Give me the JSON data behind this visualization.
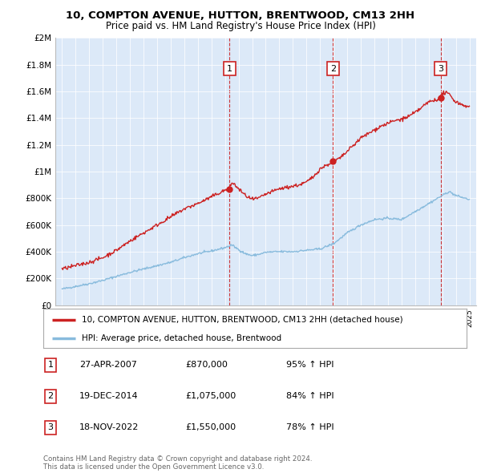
{
  "title": "10, COMPTON AVENUE, HUTTON, BRENTWOOD, CM13 2HH",
  "subtitle": "Price paid vs. HM Land Registry's House Price Index (HPI)",
  "ylim": [
    0,
    2000000
  ],
  "yticks": [
    0,
    200000,
    400000,
    600000,
    800000,
    1000000,
    1200000,
    1400000,
    1600000,
    1800000,
    2000000
  ],
  "ytick_labels": [
    "£0",
    "£200K",
    "£400K",
    "£600K",
    "£800K",
    "£1M",
    "£1.2M",
    "£1.4M",
    "£1.6M",
    "£1.8M",
    "£2M"
  ],
  "plot_bg_color": "#dce9f8",
  "red_color": "#cc2222",
  "blue_color": "#88bbdd",
  "sale_dates": [
    2007.32,
    2014.96,
    2022.88
  ],
  "sale_prices": [
    870000,
    1075000,
    1550000
  ],
  "sale_labels": [
    "1",
    "2",
    "3"
  ],
  "vline_color": "#cc2222",
  "legend_house": "10, COMPTON AVENUE, HUTTON, BRENTWOOD, CM13 2HH (detached house)",
  "legend_hpi": "HPI: Average price, detached house, Brentwood",
  "table_data": [
    [
      "1",
      "27-APR-2007",
      "£870,000",
      "95% ↑ HPI"
    ],
    [
      "2",
      "19-DEC-2014",
      "£1,075,000",
      "84% ↑ HPI"
    ],
    [
      "3",
      "18-NOV-2022",
      "£1,550,000",
      "78% ↑ HPI"
    ]
  ],
  "footnote": "Contains HM Land Registry data © Crown copyright and database right 2024.\nThis data is licensed under the Open Government Licence v3.0.",
  "xmin": 1994.5,
  "xmax": 2025.5,
  "hpi_x": [
    1995,
    1996,
    1997,
    1998,
    1999,
    2000,
    2001,
    2002,
    2003,
    2004,
    2005,
    2006,
    2007,
    2007.5,
    2008,
    2008.5,
    2009,
    2009.5,
    2010,
    2011,
    2012,
    2013,
    2014,
    2015,
    2016,
    2017,
    2018,
    2019,
    2020,
    2021,
    2022,
    2023,
    2023.5,
    2024,
    2025
  ],
  "hpi_y": [
    120000,
    140000,
    160000,
    185000,
    215000,
    245000,
    270000,
    295000,
    320000,
    355000,
    385000,
    405000,
    430000,
    450000,
    415000,
    385000,
    370000,
    380000,
    395000,
    400000,
    400000,
    410000,
    420000,
    460000,
    540000,
    600000,
    640000,
    650000,
    640000,
    700000,
    760000,
    820000,
    850000,
    820000,
    790000
  ],
  "red_x": [
    1995,
    1996,
    1997,
    1998,
    1999,
    2000,
    2001,
    2002,
    2003,
    2004,
    2005,
    2006,
    2007,
    2007.32,
    2007.5,
    2008,
    2008.5,
    2009,
    2009.5,
    2010,
    2010.5,
    2011,
    2011.5,
    2012,
    2012.5,
    2013,
    2013.5,
    2014,
    2014.96,
    2015,
    2015.5,
    2016,
    2016.5,
    2017,
    2017.5,
    2018,
    2018.5,
    2019,
    2019.5,
    2020,
    2020.5,
    2021,
    2021.5,
    2022,
    2022.88,
    2023,
    2023.5,
    2024,
    2025
  ],
  "red_y": [
    270000,
    295000,
    320000,
    355000,
    410000,
    480000,
    540000,
    600000,
    660000,
    720000,
    760000,
    810000,
    860000,
    870000,
    920000,
    870000,
    820000,
    790000,
    800000,
    830000,
    850000,
    870000,
    880000,
    890000,
    900000,
    920000,
    960000,
    1020000,
    1075000,
    1080000,
    1100000,
    1150000,
    1200000,
    1250000,
    1280000,
    1310000,
    1340000,
    1360000,
    1380000,
    1390000,
    1410000,
    1440000,
    1480000,
    1520000,
    1550000,
    1590000,
    1580000,
    1520000,
    1480000
  ]
}
